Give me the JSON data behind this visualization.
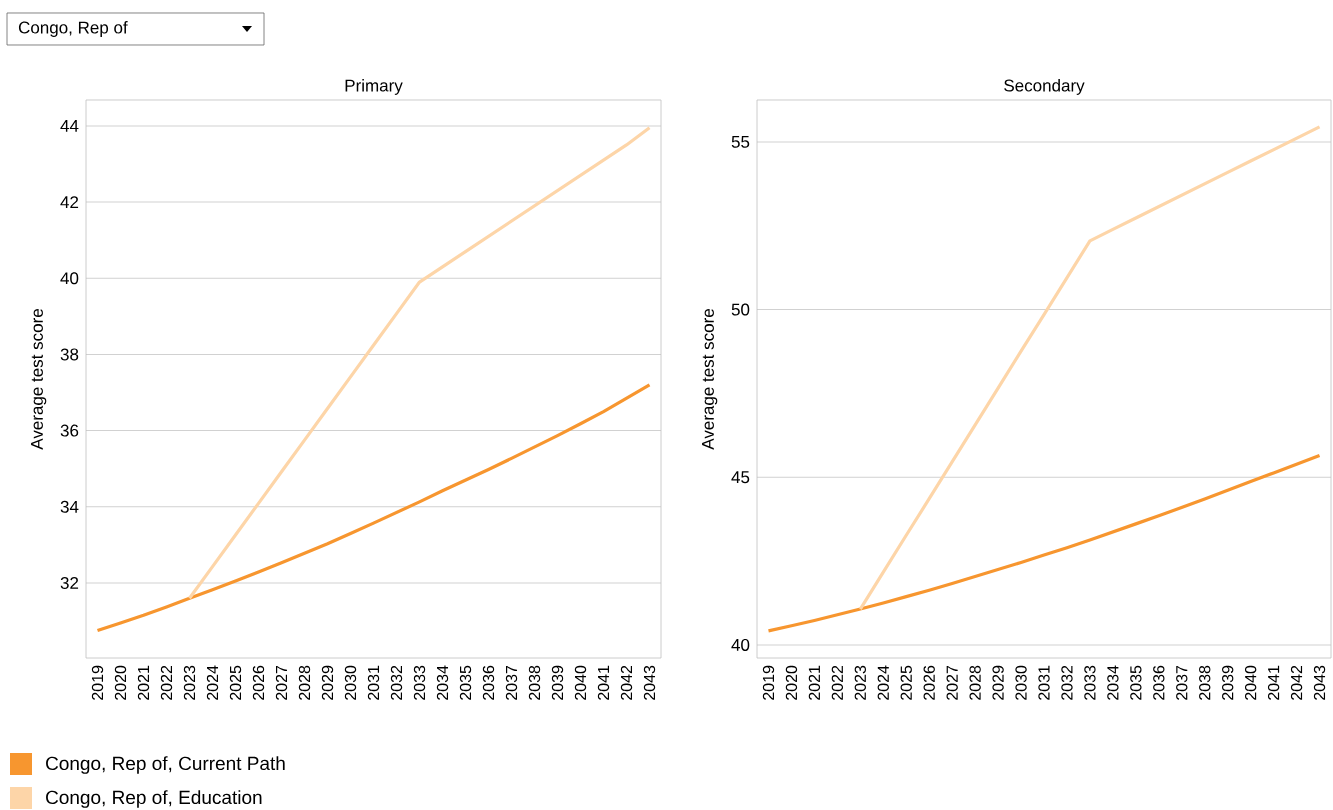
{
  "chart_data": [
    {
      "type": "line",
      "title": "Primary",
      "ylabel": "Average test score",
      "annotations": [
        "Congo, Rep of"
      ],
      "categories": [
        "2019",
        "2020",
        "2021",
        "2022",
        "2023",
        "2024",
        "2025",
        "2026",
        "2027",
        "2028",
        "2029",
        "2030",
        "2031",
        "2032",
        "2033",
        "2034",
        "2035",
        "2036",
        "2037",
        "2038",
        "2039",
        "2040",
        "2041",
        "2042",
        "2043"
      ],
      "series": [
        {
          "name": "Congo, Rep of, Current Path",
          "color": "#f7962f",
          "values": [
            30.75,
            30.95,
            31.15,
            31.37,
            31.6,
            31.82,
            32.05,
            32.29,
            32.53,
            32.78,
            33.03,
            33.3,
            33.57,
            33.85,
            34.13,
            34.42,
            34.7,
            34.98,
            35.27,
            35.57,
            35.87,
            36.18,
            36.5,
            36.85,
            37.2
          ]
        },
        {
          "name": "Congo, Rep of, Education",
          "color": "#fdd5a8",
          "values": [
            null,
            null,
            null,
            null,
            31.6,
            32.43,
            33.26,
            34.09,
            34.92,
            35.75,
            36.58,
            37.41,
            38.24,
            39.07,
            39.9,
            40.3,
            40.7,
            41.1,
            41.5,
            41.9,
            42.3,
            42.7,
            43.1,
            43.5,
            43.95
          ]
        }
      ],
      "ylim": [
        30.03,
        44.68
      ],
      "yticks": [
        32,
        34,
        36,
        38,
        40,
        42,
        44
      ],
      "grid": "y",
      "legend": "bottom"
    },
    {
      "type": "line",
      "title": "Secondary",
      "ylabel": "Average test score",
      "categories": [
        "2019",
        "2020",
        "2021",
        "2022",
        "2023",
        "2024",
        "2025",
        "2026",
        "2027",
        "2028",
        "2029",
        "2030",
        "2031",
        "2032",
        "2033",
        "2034",
        "2035",
        "2036",
        "2037",
        "2038",
        "2039",
        "2040",
        "2041",
        "2042",
        "2043"
      ],
      "series": [
        {
          "color": "#f7962f",
          "values": [
            40.42,
            40.57,
            40.73,
            40.9,
            41.07,
            41.25,
            41.44,
            41.63,
            41.83,
            42.04,
            42.25,
            42.46,
            42.68,
            42.9,
            43.13,
            43.37,
            43.61,
            43.85,
            44.1,
            44.35,
            44.61,
            44.87,
            45.13,
            45.39,
            45.65
          ]
        },
        {
          "color": "#fdd5a8",
          "values": [
            null,
            null,
            null,
            null,
            41.07,
            42.17,
            43.27,
            44.36,
            45.46,
            46.56,
            47.66,
            48.76,
            49.85,
            50.95,
            52.05,
            52.39,
            52.73,
            53.07,
            53.41,
            53.75,
            54.09,
            54.43,
            54.77,
            55.11,
            55.45
          ]
        }
      ],
      "ylim": [
        39.61,
        56.25
      ],
      "yticks": [
        40,
        45,
        50,
        55
      ],
      "grid": "y"
    }
  ]
}
